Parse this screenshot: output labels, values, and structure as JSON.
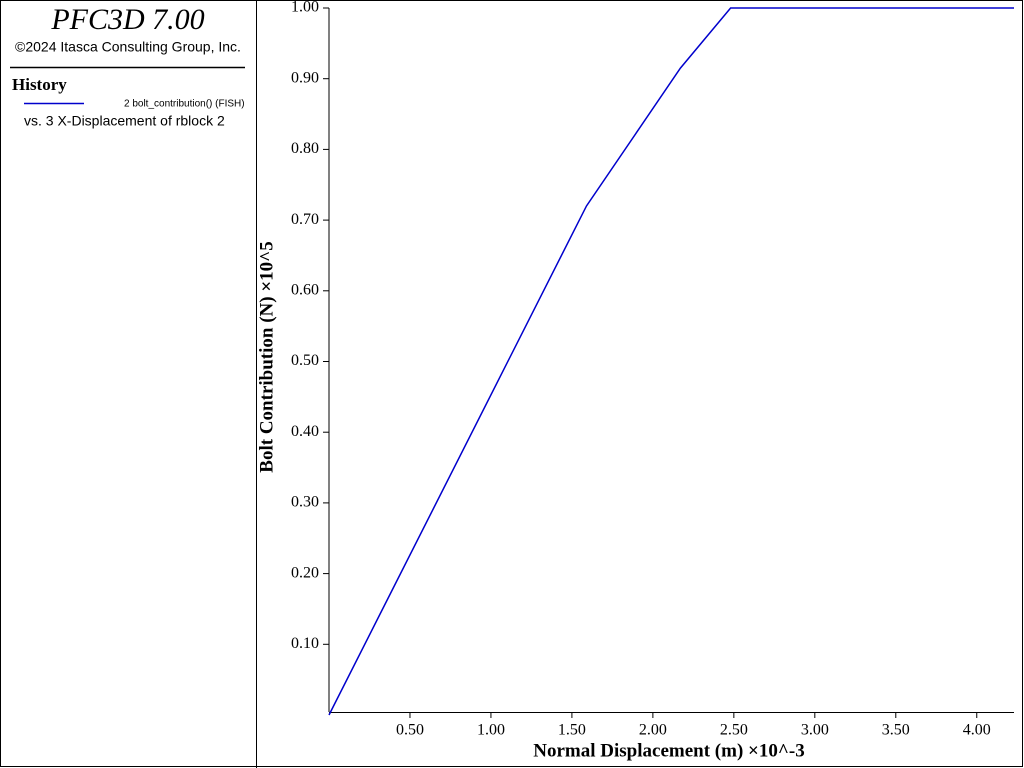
{
  "header": {
    "title": "PFC3D 7.00",
    "copyright": "©2024 Itasca Consulting Group, Inc.",
    "section": "History",
    "history_vs": "vs. 3 X-Displacement of rblock 2"
  },
  "chart_data": {
    "type": "line",
    "x_label": "Normal Displacement (m) ×10^-3",
    "y_label": "Bolt Contribution (N) ×10^5",
    "x": [
      0,
      1.59,
      2.17,
      2.48,
      4.23
    ],
    "series": [
      {
        "name": "2 bolt_contribution() (FISH)",
        "color": "#0000cc",
        "values": [
          0,
          0.72,
          0.915,
          1.0,
          1.0
        ]
      }
    ],
    "xlim": [
      0,
      4.23
    ],
    "ylim": [
      0,
      1.0
    ],
    "xticks": [
      {
        "value": 0.5,
        "label": "0.50"
      },
      {
        "value": 1,
        "label": "1.00"
      },
      {
        "value": 1.5,
        "label": "1.50"
      },
      {
        "value": 2,
        "label": "2.00"
      },
      {
        "value": 2.5,
        "label": "2.50"
      },
      {
        "value": 3,
        "label": "3.00"
      },
      {
        "value": 3.5,
        "label": "3.50"
      },
      {
        "value": 4,
        "label": "4.00"
      }
    ],
    "yticks": [
      {
        "value": 0.1,
        "label": "0.10"
      },
      {
        "value": 0.2,
        "label": "0.20"
      },
      {
        "value": 0.3,
        "label": "0.30"
      },
      {
        "value": 0.4,
        "label": "0.40"
      },
      {
        "value": 0.5,
        "label": "0.50"
      },
      {
        "value": 0.6,
        "label": "0.60"
      },
      {
        "value": 0.7,
        "label": "0.70"
      },
      {
        "value": 0.8,
        "label": "0.80"
      },
      {
        "value": 0.9,
        "label": "0.90"
      },
      {
        "value": 1.0,
        "label": "1.00"
      }
    ],
    "grid": false
  }
}
